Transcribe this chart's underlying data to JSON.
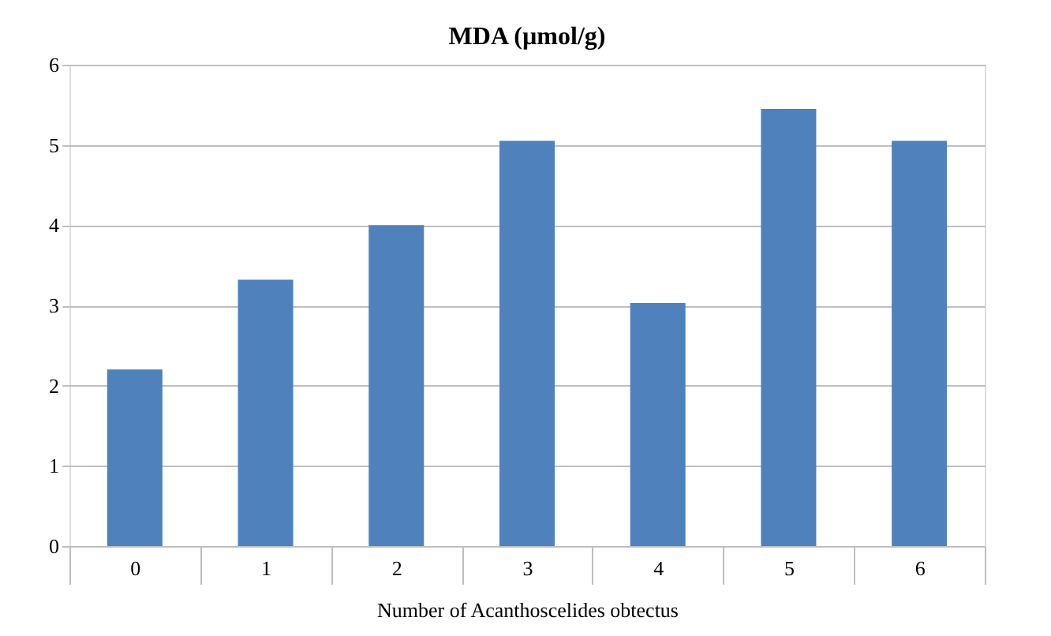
{
  "chart_data": {
    "type": "bar",
    "title": "MDA (µmol/g)",
    "xlabel": "Number of Acanthoscelides obtectus",
    "categories": [
      "0",
      "1",
      "2",
      "3",
      "4",
      "5",
      "6"
    ],
    "values": [
      2.2,
      3.32,
      4.0,
      5.05,
      3.03,
      5.45,
      5.05
    ],
    "color": "#4f81bd",
    "ylim": [
      0,
      6
    ],
    "yticks": [
      0,
      1,
      2,
      3,
      4,
      5,
      6
    ],
    "grid": "y"
  }
}
